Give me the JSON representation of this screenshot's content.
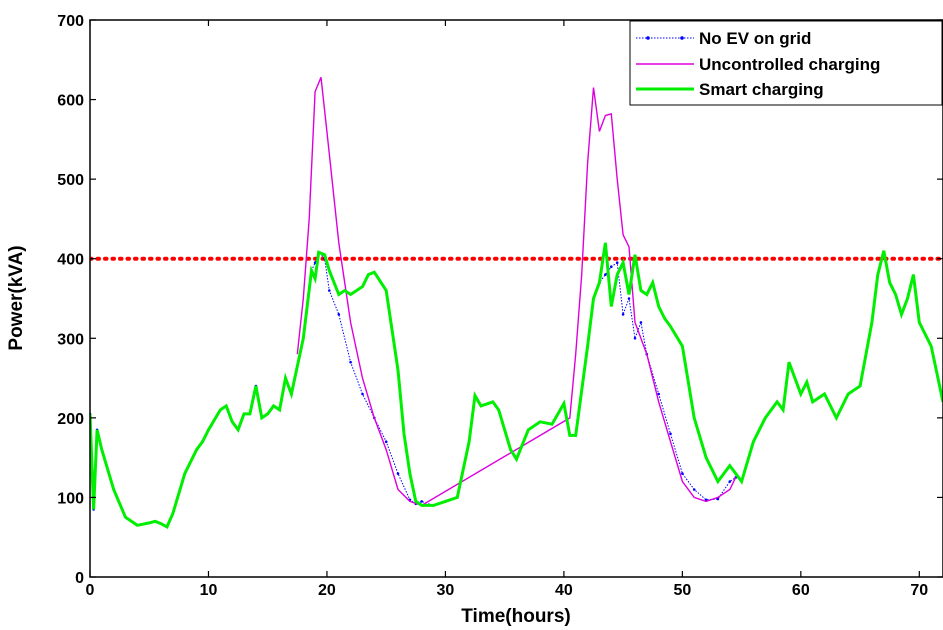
{
  "chart_data": {
    "type": "line",
    "title": "",
    "xlabel": "Time(hours)",
    "ylabel": "Power(kVA)",
    "xlim": [
      0,
      72
    ],
    "ylim": [
      0,
      700
    ],
    "xticks": [
      0,
      10,
      20,
      30,
      40,
      50,
      60,
      70
    ],
    "yticks": [
      0,
      100,
      200,
      300,
      400,
      500,
      600,
      700
    ],
    "grid": false,
    "legend_position": "top-right",
    "threshold": {
      "value": 400,
      "color": "#ff0000",
      "style": "dotted"
    },
    "series": [
      {
        "name": "No EV on grid",
        "color": "#0000ff",
        "style": "dotted-with-markers",
        "points": [
          [
            0,
            205
          ],
          [
            0.3,
            85
          ],
          [
            0.6,
            185
          ],
          [
            1,
            160
          ],
          [
            2,
            110
          ],
          [
            3,
            75
          ],
          [
            4,
            65
          ],
          [
            5,
            68
          ],
          [
            5.5,
            70
          ],
          [
            6,
            67
          ],
          [
            6.5,
            63
          ],
          [
            7,
            80
          ],
          [
            8,
            130
          ],
          [
            9,
            160
          ],
          [
            9.5,
            170
          ],
          [
            10,
            185
          ],
          [
            11,
            210
          ],
          [
            11.5,
            215
          ],
          [
            12,
            195
          ],
          [
            12.5,
            185
          ],
          [
            13,
            205
          ],
          [
            13.5,
            205
          ],
          [
            14,
            240
          ],
          [
            14.5,
            200
          ],
          [
            15,
            205
          ],
          [
            15.5,
            215
          ],
          [
            16,
            210
          ],
          [
            16.5,
            250
          ],
          [
            17,
            230
          ],
          [
            18,
            300
          ],
          [
            18.7,
            385
          ],
          [
            19,
            395
          ],
          [
            19.3,
            408
          ],
          [
            19.8,
            400
          ],
          [
            20.2,
            360
          ],
          [
            21,
            330
          ],
          [
            22,
            270
          ],
          [
            23,
            230
          ],
          [
            24,
            200
          ],
          [
            25,
            170
          ],
          [
            26,
            130
          ],
          [
            27,
            97
          ],
          [
            27.5,
            92
          ],
          [
            28,
            95
          ],
          [
            29,
            90
          ],
          [
            30,
            95
          ],
          [
            31,
            100
          ],
          [
            32,
            170
          ],
          [
            32.5,
            228
          ],
          [
            33,
            215
          ],
          [
            34,
            220
          ],
          [
            34.5,
            210
          ],
          [
            35.5,
            160
          ],
          [
            36,
            148
          ],
          [
            37,
            185
          ],
          [
            38,
            195
          ],
          [
            39,
            192
          ],
          [
            40,
            218
          ],
          [
            40.5,
            178
          ],
          [
            41,
            178
          ],
          [
            42,
            290
          ],
          [
            42.5,
            350
          ],
          [
            43,
            370
          ],
          [
            43.5,
            380
          ],
          [
            44,
            390
          ],
          [
            44.5,
            395
          ],
          [
            45,
            330
          ],
          [
            45.5,
            350
          ],
          [
            46,
            300
          ],
          [
            46.5,
            320
          ],
          [
            47,
            280
          ],
          [
            48,
            230
          ],
          [
            49,
            180
          ],
          [
            50,
            130
          ],
          [
            51,
            110
          ],
          [
            52,
            97
          ],
          [
            53,
            98
          ],
          [
            54,
            120
          ],
          [
            54.5,
            125
          ]
        ]
      },
      {
        "name": "Uncontrolled charging",
        "color": "#dd00dd",
        "style": "solid-thin",
        "points": [
          [
            17.5,
            280
          ],
          [
            18,
            350
          ],
          [
            18.5,
            450
          ],
          [
            19,
            610
          ],
          [
            19.5,
            628
          ],
          [
            20,
            560
          ],
          [
            21,
            420
          ],
          [
            22,
            320
          ],
          [
            23,
            250
          ],
          [
            24,
            200
          ],
          [
            25,
            160
          ],
          [
            26,
            110
          ],
          [
            27,
            95
          ],
          [
            28,
            90
          ],
          [
            40.5,
            200
          ],
          [
            41,
            280
          ],
          [
            41.5,
            380
          ],
          [
            42,
            520
          ],
          [
            42.5,
            615
          ],
          [
            43,
            560
          ],
          [
            43.5,
            580
          ],
          [
            44,
            582
          ],
          [
            44.5,
            500
          ],
          [
            45,
            430
          ],
          [
            45.5,
            415
          ],
          [
            46,
            320
          ],
          [
            47,
            280
          ],
          [
            48,
            220
          ],
          [
            49,
            170
          ],
          [
            50,
            120
          ],
          [
            51,
            100
          ],
          [
            52,
            95
          ],
          [
            53,
            100
          ],
          [
            54,
            110
          ],
          [
            54.5,
            125
          ]
        ]
      },
      {
        "name": "Smart charging",
        "color": "#00ee00",
        "style": "solid-thick",
        "points": [
          [
            0,
            205
          ],
          [
            0.3,
            85
          ],
          [
            0.6,
            185
          ],
          [
            1,
            160
          ],
          [
            2,
            110
          ],
          [
            3,
            75
          ],
          [
            4,
            65
          ],
          [
            5,
            68
          ],
          [
            5.5,
            70
          ],
          [
            6,
            67
          ],
          [
            6.5,
            63
          ],
          [
            7,
            80
          ],
          [
            8,
            130
          ],
          [
            9,
            160
          ],
          [
            9.5,
            170
          ],
          [
            10,
            185
          ],
          [
            11,
            210
          ],
          [
            11.5,
            215
          ],
          [
            12,
            195
          ],
          [
            12.5,
            185
          ],
          [
            13,
            205
          ],
          [
            13.5,
            205
          ],
          [
            14,
            240
          ],
          [
            14.5,
            200
          ],
          [
            15,
            205
          ],
          [
            15.5,
            215
          ],
          [
            16,
            210
          ],
          [
            16.5,
            250
          ],
          [
            17,
            230
          ],
          [
            18,
            300
          ],
          [
            18.7,
            385
          ],
          [
            19,
            375
          ],
          [
            19.3,
            408
          ],
          [
            19.8,
            405
          ],
          [
            20.2,
            385
          ],
          [
            21,
            355
          ],
          [
            21.5,
            360
          ],
          [
            22,
            355
          ],
          [
            23,
            365
          ],
          [
            23.5,
            380
          ],
          [
            24,
            383
          ],
          [
            25,
            360
          ],
          [
            26,
            260
          ],
          [
            26.5,
            180
          ],
          [
            27,
            130
          ],
          [
            27.5,
            95
          ],
          [
            28,
            90
          ],
          [
            29,
            90
          ],
          [
            30,
            95
          ],
          [
            31,
            100
          ],
          [
            32,
            170
          ],
          [
            32.5,
            228
          ],
          [
            33,
            215
          ],
          [
            34,
            220
          ],
          [
            34.5,
            210
          ],
          [
            35.5,
            160
          ],
          [
            36,
            148
          ],
          [
            37,
            185
          ],
          [
            38,
            195
          ],
          [
            39,
            192
          ],
          [
            40,
            218
          ],
          [
            40.5,
            178
          ],
          [
            41,
            178
          ],
          [
            42,
            290
          ],
          [
            42.5,
            350
          ],
          [
            43,
            370
          ],
          [
            43.5,
            420
          ],
          [
            44,
            340
          ],
          [
            44.5,
            380
          ],
          [
            45,
            395
          ],
          [
            45.5,
            355
          ],
          [
            46,
            405
          ],
          [
            46.5,
            360
          ],
          [
            47,
            355
          ],
          [
            47.5,
            370
          ],
          [
            48,
            340
          ],
          [
            48.5,
            325
          ],
          [
            49,
            315
          ],
          [
            50,
            290
          ],
          [
            51,
            200
          ],
          [
            52,
            150
          ],
          [
            53,
            120
          ],
          [
            54,
            140
          ],
          [
            55,
            120
          ],
          [
            56,
            170
          ],
          [
            57,
            200
          ],
          [
            58,
            220
          ],
          [
            58.5,
            210
          ],
          [
            59,
            270
          ],
          [
            60,
            230
          ],
          [
            60.5,
            245
          ],
          [
            61,
            220
          ],
          [
            62,
            230
          ],
          [
            63,
            200
          ],
          [
            64,
            230
          ],
          [
            65,
            240
          ],
          [
            66,
            320
          ],
          [
            66.5,
            380
          ],
          [
            67,
            410
          ],
          [
            67.5,
            370
          ],
          [
            68,
            355
          ],
          [
            68.5,
            330
          ],
          [
            69,
            350
          ],
          [
            69.5,
            380
          ],
          [
            70,
            320
          ],
          [
            71,
            290
          ],
          [
            72,
            220
          ]
        ]
      }
    ]
  }
}
